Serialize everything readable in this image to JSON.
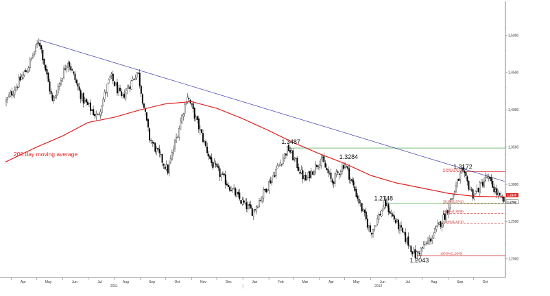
{
  "chart_data": {
    "type": "candlestick",
    "title": "",
    "xlabel": "",
    "ylabel": "",
    "ylim": [
      1.175,
      1.54
    ],
    "y_ticks": [
      1.2,
      1.25,
      1.3,
      1.35,
      1.4,
      1.45,
      1.5
    ],
    "y_tick_labels": [
      "1,2000",
      "1,2500",
      "1,3000",
      "1,3500",
      "1,4000",
      "1,4500",
      "1,5000"
    ],
    "x_ticks": [
      "Apr",
      "May",
      "Jun",
      "Jul",
      "Aug",
      "Sep",
      "Oct",
      "Nov",
      "Dec",
      "Jan",
      "Feb",
      "Mar",
      "Apr",
      "May",
      "Jun",
      "Jul",
      "Aug",
      "Sep",
      "Oct"
    ],
    "x_years": [
      "2011",
      "2012"
    ],
    "grid": false,
    "colors": {
      "candles": "#000000",
      "moving_average": "#e02020",
      "trendline": "#3a3aaa",
      "support": "#2a9a2a",
      "fib": "#d21c1c"
    },
    "price_path": [
      {
        "date": "2011-03-25",
        "value": 1.41
      },
      {
        "date": "2011-04-20",
        "value": 1.455
      },
      {
        "date": "2011-05-04",
        "value": 1.4939
      },
      {
        "date": "2011-05-20",
        "value": 1.41
      },
      {
        "date": "2011-06-07",
        "value": 1.467
      },
      {
        "date": "2011-06-24",
        "value": 1.415
      },
      {
        "date": "2011-07-12",
        "value": 1.39
      },
      {
        "date": "2011-07-28",
        "value": 1.445
      },
      {
        "date": "2011-08-10",
        "value": 1.415
      },
      {
        "date": "2011-08-29",
        "value": 1.452
      },
      {
        "date": "2011-09-12",
        "value": 1.362
      },
      {
        "date": "2011-10-04",
        "value": 1.318
      },
      {
        "date": "2011-10-27",
        "value": 1.42
      },
      {
        "date": "2011-11-25",
        "value": 1.328
      },
      {
        "date": "2011-12-30",
        "value": 1.277
      },
      {
        "date": "2012-01-13",
        "value": 1.263
      },
      {
        "date": "2012-02-24",
        "value": 1.3487
      },
      {
        "date": "2012-03-15",
        "value": 1.305
      },
      {
        "date": "2012-04-03",
        "value": 1.335
      },
      {
        "date": "2012-04-16",
        "value": 1.303
      },
      {
        "date": "2012-05-01",
        "value": 1.3284
      },
      {
        "date": "2012-06-01",
        "value": 1.235
      },
      {
        "date": "2012-06-18",
        "value": 1.2748
      },
      {
        "date": "2012-07-24",
        "value": 1.2043
      },
      {
        "date": "2012-08-10",
        "value": 1.225
      },
      {
        "date": "2012-08-29",
        "value": 1.26
      },
      {
        "date": "2012-09-17",
        "value": 1.3172
      },
      {
        "date": "2012-10-01",
        "value": 1.285
      },
      {
        "date": "2012-10-17",
        "value": 1.31
      },
      {
        "date": "2012-11-02",
        "value": 1.28
      },
      {
        "date": "2012-11-07",
        "value": 1.2782
      }
    ],
    "moving_average": {
      "name": "200 day moving average",
      "points": [
        {
          "date": "2011-03-25",
          "value": 1.33
        },
        {
          "date": "2011-05-01",
          "value": 1.35
        },
        {
          "date": "2011-06-01",
          "value": 1.365
        },
        {
          "date": "2011-07-01",
          "value": 1.383
        },
        {
          "date": "2011-08-01",
          "value": 1.39
        },
        {
          "date": "2011-09-01",
          "value": 1.4
        },
        {
          "date": "2011-10-01",
          "value": 1.408
        },
        {
          "date": "2011-11-01",
          "value": 1.411
        },
        {
          "date": "2011-12-01",
          "value": 1.402
        },
        {
          "date": "2012-01-01",
          "value": 1.388
        },
        {
          "date": "2012-02-01",
          "value": 1.372
        },
        {
          "date": "2012-03-01",
          "value": 1.356
        },
        {
          "date": "2012-04-01",
          "value": 1.341
        },
        {
          "date": "2012-05-01",
          "value": 1.328
        },
        {
          "date": "2012-06-01",
          "value": 1.312
        },
        {
          "date": "2012-07-01",
          "value": 1.302
        },
        {
          "date": "2012-08-01",
          "value": 1.295
        },
        {
          "date": "2012-09-01",
          "value": 1.288
        },
        {
          "date": "2012-10-01",
          "value": 1.284
        },
        {
          "date": "2012-11-07",
          "value": 1.283
        }
      ]
    },
    "trendline": {
      "start": {
        "date": "2011-05-04",
        "value": 1.4939
      },
      "end": {
        "date": "2012-11-07",
        "value": 1.304
      }
    },
    "horizontal_lines": [
      {
        "value": 1.3487,
        "from": "2012-02-24",
        "style": "solid-green"
      },
      {
        "value": 1.2748,
        "from": "2012-06-18",
        "style": "solid-green"
      },
      {
        "value": 1.3172,
        "from": "2012-09-17",
        "style": "solid-red"
      },
      {
        "value": 1.2043,
        "from": "2012-07-24",
        "style": "solid-red"
      }
    ],
    "fib_levels": [
      {
        "label": "0.0%(1,3172)",
        "value": 1.3172
      },
      {
        "label": "38.2%(1,2741)",
        "value": 1.2741
      },
      {
        "label": "50.0%(1,2608)",
        "value": 1.2608
      },
      {
        "label": "61.8%(1,2474)",
        "value": 1.2474
      },
      {
        "label": "100.0%(1,2043)",
        "value": 1.2043
      }
    ],
    "annotations": [
      {
        "text": "1.3487",
        "date": "2012-02-24",
        "value": 1.3487
      },
      {
        "text": "1.3284",
        "date": "2012-05-01",
        "value": 1.3284
      },
      {
        "text": "1.2748",
        "date": "2012-06-18",
        "value": 1.2748
      },
      {
        "text": "1.3172",
        "date": "2012-09-17",
        "value": 1.3172
      },
      {
        "text": "1.2043",
        "date": "2012-07-24",
        "value": 1.2043
      }
    ],
    "last_value_tags": [
      {
        "text": "1.2835",
        "value": 1.2835,
        "color": "#e02020"
      },
      {
        "text": "1.2782",
        "value": 1.2782,
        "color": "#000000"
      }
    ],
    "ma_label": "200 day moving average"
  }
}
